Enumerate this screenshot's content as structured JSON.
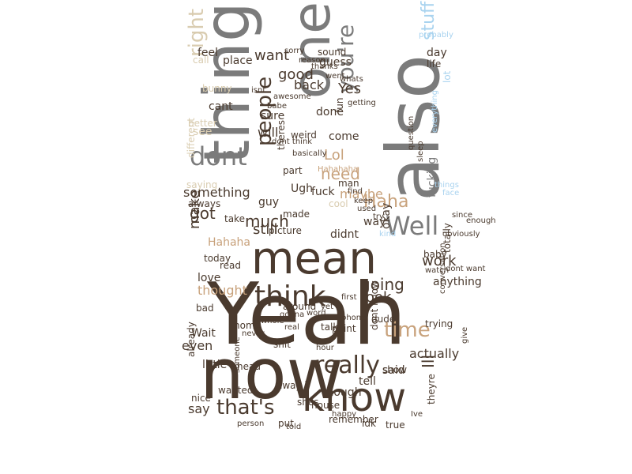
{
  "palette": {
    "dark_brown": "#4a3a2e",
    "gray": "#7b7b7b",
    "tan": "#c8a27c",
    "light_tan": "#d9ccb0",
    "light_blue": "#a9d3ef",
    "copper": "#b77d5a"
  },
  "words": [
    {
      "t": "Yeah",
      "c": "dark_brown"
    },
    {
      "t": "now",
      "c": "dark_brown"
    },
    {
      "t": "also",
      "c": "gray"
    },
    {
      "t": "thing",
      "c": "gray"
    },
    {
      "t": "one",
      "c": "gray"
    },
    {
      "t": "mean",
      "c": "dark_brown"
    },
    {
      "t": "know",
      "c": "dark_brown"
    },
    {
      "t": "think",
      "c": "dark_brown"
    },
    {
      "t": "really",
      "c": "dark_brown"
    },
    {
      "t": "that's",
      "c": "dark_brown"
    },
    {
      "t": "Well",
      "c": "gray"
    },
    {
      "t": "dont",
      "c": "gray"
    },
    {
      "t": "right",
      "c": "light_tan"
    },
    {
      "t": "you're",
      "c": "gray"
    },
    {
      "t": "people",
      "c": "dark_brown"
    },
    {
      "t": "time",
      "c": "tan"
    },
    {
      "t": "going",
      "c": "dark_brown"
    },
    {
      "t": "stuff",
      "c": "light_blue"
    },
    {
      "t": "Haha",
      "c": "tan"
    },
    {
      "t": "much",
      "c": "dark_brown"
    },
    {
      "t": "still",
      "c": "dark_brown"
    },
    {
      "t": "got",
      "c": "dark_brown"
    },
    {
      "t": "make",
      "c": "dark_brown"
    },
    {
      "t": "look",
      "c": "dark_brown"
    },
    {
      "t": "good",
      "c": "dark_brown"
    },
    {
      "t": "want",
      "c": "dark_brown"
    },
    {
      "t": "feel",
      "c": "dark_brown"
    },
    {
      "t": "Yes",
      "c": "dark_brown"
    },
    {
      "t": "need",
      "c": "tan"
    },
    {
      "t": "Lol",
      "c": "tan"
    },
    {
      "t": "work",
      "c": "dark_brown"
    },
    {
      "t": "say",
      "c": "dark_brown"
    },
    {
      "t": "even",
      "c": "dark_brown"
    },
    {
      "t": "Wait",
      "c": "dark_brown"
    },
    {
      "t": "Hahaha",
      "c": "tan"
    },
    {
      "t": "thought",
      "c": "tan"
    },
    {
      "t": "love",
      "c": "dark_brown"
    },
    {
      "t": "something",
      "c": "dark_brown"
    },
    {
      "t": "see",
      "c": "light_tan"
    },
    {
      "t": "way",
      "c": "dark_brown"
    },
    {
      "t": "okay",
      "c": "dark_brown"
    },
    {
      "t": "Ill",
      "c": "dark_brown"
    },
    {
      "t": "actually",
      "c": "dark_brown"
    },
    {
      "t": "little",
      "c": "dark_brown"
    },
    {
      "t": "anything",
      "c": "dark_brown"
    },
    {
      "t": "maybe",
      "c": "tan"
    },
    {
      "t": "fucking",
      "c": "gray"
    },
    {
      "t": "back",
      "c": "dark_brown"
    },
    {
      "t": "guess",
      "c": "dark_brown"
    },
    {
      "t": "will",
      "c": "dark_brown"
    },
    {
      "t": "cant",
      "c": "dark_brown"
    },
    {
      "t": "come",
      "c": "dark_brown"
    },
    {
      "t": "guy",
      "c": "dark_brown"
    },
    {
      "t": "said",
      "c": "dark_brown"
    },
    {
      "t": "though",
      "c": "dark_brown"
    },
    {
      "t": "tell",
      "c": "dark_brown"
    },
    {
      "t": "day",
      "c": "dark_brown"
    },
    {
      "t": "place",
      "c": "dark_brown"
    },
    {
      "t": "sure",
      "c": "dark_brown"
    },
    {
      "t": "didnt",
      "c": "dark_brown"
    },
    {
      "t": "dont know",
      "c": "dark_brown"
    },
    {
      "t": "nice",
      "c": "dark_brown"
    },
    {
      "t": "already",
      "c": "dark_brown"
    },
    {
      "t": "bad",
      "c": "dark_brown"
    },
    {
      "t": "done",
      "c": "dark_brown"
    },
    {
      "t": "life",
      "c": "dark_brown"
    },
    {
      "t": "lot",
      "c": "light_blue"
    },
    {
      "t": "totally",
      "c": "dark_brown"
    },
    {
      "t": "trying",
      "c": "dark_brown"
    },
    {
      "t": "baby",
      "c": "dark_brown"
    },
    {
      "t": "remember",
      "c": "dark_brown"
    },
    {
      "t": "idk",
      "c": "dark_brown"
    },
    {
      "t": "true",
      "c": "dark_brown"
    },
    {
      "t": "point",
      "c": "dark_brown"
    },
    {
      "t": "Ugh",
      "c": "dark_brown"
    },
    {
      "t": "fuck",
      "c": "dark_brown"
    },
    {
      "t": "man",
      "c": "dark_brown"
    },
    {
      "t": "cool",
      "c": "light_tan"
    },
    {
      "t": "made",
      "c": "dark_brown"
    },
    {
      "t": "house",
      "c": "dark_brown"
    },
    {
      "t": "wanted",
      "c": "dark_brown"
    },
    {
      "t": "around",
      "c": "dark_brown"
    },
    {
      "t": "talk",
      "c": "dark_brown"
    },
    {
      "t": "shit",
      "c": "dark_brown"
    },
    {
      "t": "shes",
      "c": "dark_brown"
    },
    {
      "t": "put",
      "c": "dark_brown"
    },
    {
      "t": "away",
      "c": "dark_brown"
    },
    {
      "t": "head",
      "c": "dark_brown"
    },
    {
      "t": "home",
      "c": "dark_brown"
    },
    {
      "t": "real",
      "c": "dark_brown"
    },
    {
      "t": "hour",
      "c": "dark_brown"
    },
    {
      "t": "dude",
      "c": "dark_brown"
    },
    {
      "t": "show",
      "c": "dark_brown"
    },
    {
      "t": "theyre",
      "c": "dark_brown"
    },
    {
      "t": "picture",
      "c": "dark_brown"
    },
    {
      "t": "today",
      "c": "dark_brown"
    },
    {
      "t": "read",
      "c": "dark_brown"
    },
    {
      "t": "take",
      "c": "dark_brown"
    },
    {
      "t": "always",
      "c": "dark_brown"
    },
    {
      "t": "saying",
      "c": "light_tan"
    },
    {
      "t": "different",
      "c": "light_tan"
    },
    {
      "t": "better",
      "c": "light_tan"
    },
    {
      "t": "bunny",
      "c": "light_tan"
    },
    {
      "t": "call",
      "c": "light_tan"
    },
    {
      "t": "weird",
      "c": "dark_brown"
    },
    {
      "t": "part",
      "c": "dark_brown"
    },
    {
      "t": "theres",
      "c": "dark_brown"
    },
    {
      "t": "basically",
      "c": "dark_brown"
    },
    {
      "t": "Hahahaha",
      "c": "tan"
    },
    {
      "t": "dont think",
      "c": "dark_brown"
    },
    {
      "t": "awesome",
      "c": "dark_brown"
    },
    {
      "t": "reason",
      "c": "dark_brown"
    },
    {
      "t": "sound",
      "c": "dark_brown"
    },
    {
      "t": "babe",
      "c": "dark_brown"
    },
    {
      "t": "whats",
      "c": "dark_brown"
    },
    {
      "t": "went",
      "c": "dark_brown"
    },
    {
      "t": "isnt",
      "c": "dark_brown"
    },
    {
      "t": "fun",
      "c": "dark_brown"
    },
    {
      "t": "getting",
      "c": "dark_brown"
    },
    {
      "t": "sleep",
      "c": "dark_brown"
    },
    {
      "t": "everything",
      "c": "light_blue"
    },
    {
      "t": "probably",
      "c": "light_blue"
    },
    {
      "t": "face",
      "c": "light_blue"
    },
    {
      "t": "things",
      "c": "light_blue"
    },
    {
      "t": "kind",
      "c": "light_blue"
    },
    {
      "t": "try",
      "c": "dark_brown"
    },
    {
      "t": "keep",
      "c": "dark_brown"
    },
    {
      "t": "find",
      "c": "dark_brown"
    },
    {
      "t": "used",
      "c": "dark_brown"
    },
    {
      "t": "phone",
      "c": "dark_brown"
    },
    {
      "t": "first",
      "c": "dark_brown"
    },
    {
      "t": "idea",
      "c": "dark_brown"
    },
    {
      "t": "yet",
      "c": "dark_brown"
    },
    {
      "t": "word",
      "c": "dark_brown"
    },
    {
      "t": "gonna",
      "c": "dark_brown"
    },
    {
      "t": "whole",
      "c": "dark_brown"
    },
    {
      "t": "someone",
      "c": "dark_brown"
    },
    {
      "t": "never",
      "c": "dark_brown"
    },
    {
      "t": "person",
      "c": "dark_brown"
    },
    {
      "t": "told",
      "c": "dark_brown"
    },
    {
      "t": "Ive",
      "c": "dark_brown"
    },
    {
      "t": "give",
      "c": "dark_brown"
    },
    {
      "t": "conversation",
      "c": "dark_brown"
    },
    {
      "t": "dont want",
      "c": "dark_brown"
    },
    {
      "t": "watch",
      "c": "dark_brown"
    },
    {
      "t": "obviously",
      "c": "dark_brown"
    },
    {
      "t": "enough",
      "c": "dark_brown"
    },
    {
      "t": "since",
      "c": "dark_brown"
    },
    {
      "t": "question",
      "c": "dark_brown"
    },
    {
      "t": "sorry",
      "c": "dark_brown"
    },
    {
      "t": "thanks",
      "c": "dark_brown"
    },
    {
      "t": "happy",
      "c": "dark_brown"
    },
    {
      "t": "funny",
      "c": "dark_brown"
    },
    {
      "t": "nothing",
      "c": "light_blue"
    },
    {
      "t": "started",
      "c": "dark_brown"
    },
    {
      "t": "book",
      "c": "dark_brown"
    },
    {
      "t": "night",
      "c": "dark_brown"
    }
  ]
}
